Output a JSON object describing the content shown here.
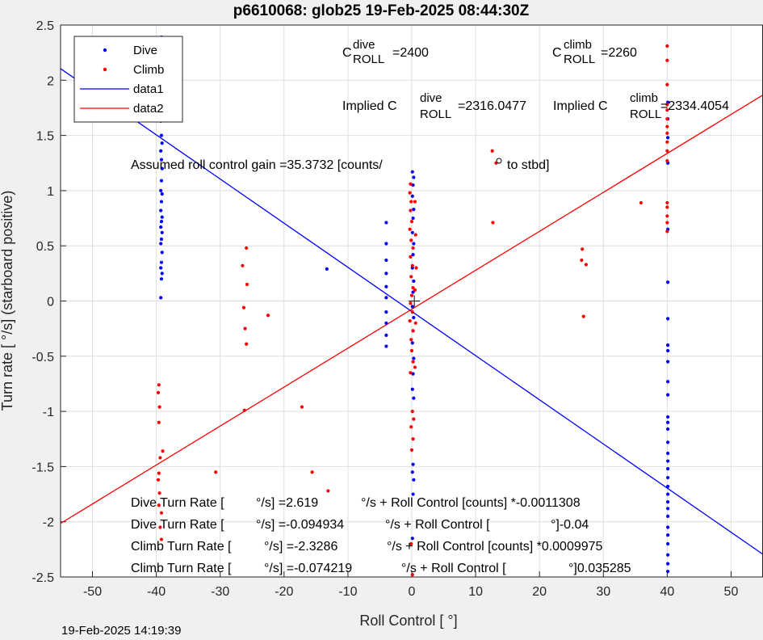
{
  "title": "p6610068: glob25 19-Feb-2025 08:44:30Z",
  "footer_timestamp": "19-Feb-2025 14:19:39",
  "colors": {
    "dive": "#0000ff",
    "climb": "#ff0000",
    "grid": "#dedede",
    "axes_bg": "#ffffff",
    "figure_bg": "#f0f0f0"
  },
  "annotations": {
    "c_dive": {
      "base": "C",
      "sup": "dive",
      "sub": "ROLL",
      "value": "=2400"
    },
    "c_climb": {
      "base": "C",
      "sup": "climb",
      "sub": "ROLL",
      "value": "=2260"
    },
    "implied_dive": {
      "prefix": "Implied C",
      "sup": "dive",
      "sub": "ROLL",
      "value": "=2316.0477"
    },
    "implied_climb": {
      "prefix": "Implied C",
      "sup": "climb",
      "sub": "ROLL",
      "value": "=2334.4054"
    },
    "gain_left": "Assumed roll control gain =35.3732 [counts/",
    "gain_right": "to stbd]",
    "eq1": [
      "Dive Turn Rate [",
      "°/s] =2.619",
      "°/s + Roll Control [counts] *-0.0011308"
    ],
    "eq2": [
      "Dive Turn Rate [",
      "°/s] =-0.094934",
      "°/s + Roll Control [",
      "°]-0.04"
    ],
    "eq3": [
      "Climb Turn Rate [",
      "°/s] =-2.3286",
      "°/s + Roll Control [counts] *0.0009975"
    ],
    "eq4": [
      "Climb Turn Rate [",
      "°/s] =-0.074219",
      "°/s + Roll Control [",
      "°]0.035285"
    ]
  },
  "chart_data": {
    "type": "scatter",
    "title": "p6610068: glob25 19-Feb-2025 08:44:30Z",
    "xlabel": "Roll Control [   °]",
    "ylabel": "Turn rate [   °/s] (starboard positive)",
    "xlim": [
      -55,
      55
    ],
    "ylim": [
      -2.5,
      2.5
    ],
    "xticks": [
      -50,
      -40,
      -30,
      -20,
      -10,
      0,
      10,
      20,
      30,
      40,
      50
    ],
    "yticks": [
      -2.5,
      -2,
      -1.5,
      -1,
      -0.5,
      0,
      0.5,
      1,
      1.5,
      2,
      2.5
    ],
    "grid": true,
    "legend_position": "top-left",
    "legend": [
      "Dive",
      "Climb",
      "data1",
      "data2"
    ],
    "series": [
      {
        "name": "Dive",
        "kind": "points",
        "points": [
          [
            -39.2,
            2.39
          ],
          [
            -39.3,
            2.36
          ],
          [
            -39.1,
            2.33
          ],
          [
            -39.2,
            2.28
          ],
          [
            -39.3,
            2.2
          ],
          [
            -39.2,
            2.11
          ],
          [
            -39.1,
            2.04
          ],
          [
            -39.3,
            1.95
          ],
          [
            -39.2,
            1.86
          ],
          [
            -39.1,
            1.73
          ],
          [
            -39.3,
            1.63
          ],
          [
            -39.2,
            1.5
          ],
          [
            -39.1,
            1.43
          ],
          [
            -39.3,
            1.36
          ],
          [
            -39.2,
            1.28
          ],
          [
            -39.1,
            1.2
          ],
          [
            -39.2,
            1.09
          ],
          [
            -39.3,
            1.0
          ],
          [
            -39.1,
            0.97
          ],
          [
            -39.2,
            0.9
          ],
          [
            -39.3,
            0.82
          ],
          [
            -39.1,
            0.76
          ],
          [
            -39.2,
            0.72
          ],
          [
            -39.3,
            0.67
          ],
          [
            -39.1,
            0.62
          ],
          [
            -39.2,
            0.56
          ],
          [
            -39.3,
            0.52
          ],
          [
            -39.1,
            0.44
          ],
          [
            -39.2,
            0.35
          ],
          [
            -39.3,
            0.3
          ],
          [
            -39.1,
            0.25
          ],
          [
            -39.2,
            0.2
          ],
          [
            -39.3,
            0.03
          ],
          [
            -13.3,
            0.29
          ],
          [
            -4,
            0.71
          ],
          [
            -4,
            0.52
          ],
          [
            -4,
            0.37
          ],
          [
            -4,
            0.25
          ],
          [
            -4,
            0.13
          ],
          [
            -4,
            0.03
          ],
          [
            -4,
            -0.1
          ],
          [
            -4,
            -0.2
          ],
          [
            -4,
            -0.31
          ],
          [
            -4,
            -0.41
          ],
          [
            0.1,
            1.17
          ],
          [
            0.3,
            1.12
          ],
          [
            0.2,
            1.05
          ],
          [
            0.1,
            0.95
          ],
          [
            0.3,
            0.83
          ],
          [
            0.2,
            0.75
          ],
          [
            0.1,
            0.62
          ],
          [
            0.3,
            0.52
          ],
          [
            0.2,
            0.42
          ],
          [
            0.1,
            0.3
          ],
          [
            0.3,
            0.18
          ],
          [
            0.2,
            0.08
          ],
          [
            0.1,
            -0.05
          ],
          [
            0.3,
            -0.15
          ],
          [
            0.2,
            -0.27
          ],
          [
            0.1,
            -0.38
          ],
          [
            0.3,
            -0.52
          ],
          [
            0.2,
            -0.66
          ],
          [
            0.1,
            -0.8
          ],
          [
            0.3,
            -0.88
          ],
          [
            0.2,
            -1.48
          ],
          [
            0.1,
            -1.55
          ],
          [
            0.3,
            -1.62
          ],
          [
            0.2,
            -1.75
          ],
          [
            0.1,
            -2.15
          ],
          [
            40.1,
            1.8
          ],
          [
            40.1,
            1.65
          ],
          [
            40.1,
            1.48
          ],
          [
            40.1,
            1.25
          ],
          [
            40.1,
            0.65
          ],
          [
            40.1,
            0.17
          ],
          [
            40.1,
            -0.16
          ],
          [
            40.1,
            -0.4
          ],
          [
            40.1,
            -0.45
          ],
          [
            40.1,
            -0.55
          ],
          [
            40.1,
            -0.73
          ],
          [
            40.1,
            -0.85
          ],
          [
            40.1,
            -1.05
          ],
          [
            40.1,
            -1.1
          ],
          [
            40.1,
            -1.16
          ],
          [
            40.1,
            -1.28
          ],
          [
            40.1,
            -1.38
          ],
          [
            40.1,
            -1.45
          ],
          [
            40.1,
            -1.52
          ],
          [
            40.1,
            -1.6
          ],
          [
            40.1,
            -1.68
          ],
          [
            40.1,
            -1.75
          ],
          [
            40.1,
            -1.82
          ],
          [
            40.1,
            -1.88
          ],
          [
            40.1,
            -1.95
          ],
          [
            40.1,
            -2.05
          ],
          [
            40.1,
            -2.12
          ],
          [
            40.1,
            -2.2
          ],
          [
            40.1,
            -2.3
          ],
          [
            40.1,
            -2.38
          ],
          [
            40.1,
            -2.45
          ]
        ]
      },
      {
        "name": "Climb",
        "kind": "points",
        "points": [
          [
            -39.6,
            -0.76
          ],
          [
            -39.7,
            -0.83
          ],
          [
            -39.5,
            -0.96
          ],
          [
            -39.6,
            -1.1
          ],
          [
            -39.0,
            -1.36
          ],
          [
            -39.4,
            -1.42
          ],
          [
            -39.6,
            -1.56
          ],
          [
            -39.7,
            -1.62
          ],
          [
            -39.5,
            -1.74
          ],
          [
            -39.6,
            -1.85
          ],
          [
            -39.2,
            -1.92
          ],
          [
            -39.4,
            -2.05
          ],
          [
            -39.2,
            -2.16
          ],
          [
            -30.7,
            -1.55
          ],
          [
            -26.3,
            -0.06
          ],
          [
            -26.1,
            -0.25
          ],
          [
            -25.9,
            -0.39
          ],
          [
            -26.2,
            -0.99
          ],
          [
            -26.5,
            0.32
          ],
          [
            -25.9,
            0.48
          ],
          [
            -25.8,
            0.15
          ],
          [
            -22.5,
            -0.13
          ],
          [
            -17.2,
            -0.96
          ],
          [
            -15.6,
            -1.55
          ],
          [
            -13.1,
            -1.72
          ],
          [
            -0.2,
            1.06
          ],
          [
            -0.3,
            0.98
          ],
          [
            -0.1,
            0.9
          ],
          [
            -0.2,
            0.82
          ],
          [
            0.0,
            0.72
          ],
          [
            -0.3,
            0.65
          ],
          [
            -0.1,
            0.55
          ],
          [
            0.2,
            0.48
          ],
          [
            -0.2,
            0.4
          ],
          [
            0.1,
            0.32
          ],
          [
            -0.1,
            0.22
          ],
          [
            0.2,
            0.12
          ],
          [
            0.0,
            0.05
          ],
          [
            -0.2,
            -0.02
          ],
          [
            0.1,
            -0.1
          ],
          [
            -0.3,
            -0.18
          ],
          [
            0.2,
            -0.27
          ],
          [
            -0.1,
            -0.35
          ],
          [
            0.0,
            -0.45
          ],
          [
            0.2,
            -0.55
          ],
          [
            -0.2,
            -0.65
          ],
          [
            0.1,
            -1.0
          ],
          [
            0.3,
            -1.07
          ],
          [
            -0.1,
            -1.14
          ],
          [
            0.2,
            -1.25
          ],
          [
            0.0,
            -1.35
          ],
          [
            -0.1,
            -2.2
          ],
          [
            0.1,
            -2.48
          ],
          [
            0.5,
            0.9
          ],
          [
            0.6,
            0.6
          ],
          [
            0.7,
            0.3
          ],
          [
            0.5,
            0.1
          ],
          [
            0.6,
            -0.2
          ],
          [
            0.5,
            -0.6
          ],
          [
            12.6,
            1.36
          ],
          [
            13.2,
            1.25
          ],
          [
            12.7,
            0.71
          ],
          [
            26.7,
            0.47
          ],
          [
            26.6,
            0.37
          ],
          [
            27.3,
            0.33
          ],
          [
            26.9,
            -0.14
          ],
          [
            35.9,
            0.89
          ],
          [
            40,
            2.31
          ],
          [
            40,
            2.18
          ],
          [
            40,
            1.96
          ],
          [
            40,
            1.78
          ],
          [
            40,
            1.73
          ],
          [
            40,
            1.65
          ],
          [
            40,
            1.58
          ],
          [
            40,
            1.52
          ],
          [
            40,
            1.44
          ],
          [
            40,
            1.36
          ],
          [
            40,
            1.27
          ],
          [
            40,
            0.89
          ],
          [
            40,
            0.85
          ],
          [
            40,
            0.77
          ],
          [
            40,
            0.71
          ],
          [
            40,
            0.63
          ]
        ]
      },
      {
        "name": "data1",
        "kind": "line",
        "slope": -0.04,
        "intercept": -0.094934
      },
      {
        "name": "data2",
        "kind": "line",
        "slope": 0.035285,
        "intercept": -0.074219
      }
    ]
  }
}
